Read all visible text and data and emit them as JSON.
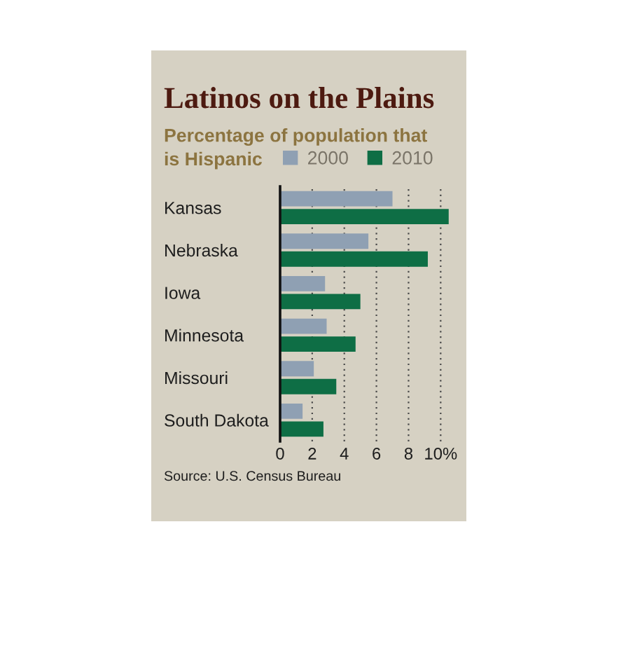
{
  "chart_data": {
    "type": "bar",
    "orientation": "horizontal",
    "title": "Latinos on the Plains",
    "subtitle": "Percentage of population that\nis Hispanic",
    "categories": [
      "Kansas",
      "Nebraska",
      "Iowa",
      "Minnesota",
      "Missouri",
      "South Dakota"
    ],
    "series": [
      {
        "name": "2000",
        "color": "#8fa0b3",
        "values": [
          7.0,
          5.5,
          2.8,
          2.9,
          2.1,
          1.4
        ]
      },
      {
        "name": "2010",
        "color": "#0e6e45",
        "values": [
          10.5,
          9.2,
          5.0,
          4.7,
          3.5,
          2.7
        ]
      }
    ],
    "xlim": [
      0,
      11.6
    ],
    "xticks": [
      0,
      2,
      4,
      6,
      8,
      {
        "value": 10,
        "label": "10%"
      }
    ],
    "grid": "x",
    "legend": "top",
    "annotations": [
      "Source: U.S. Census Bureau"
    ]
  }
}
